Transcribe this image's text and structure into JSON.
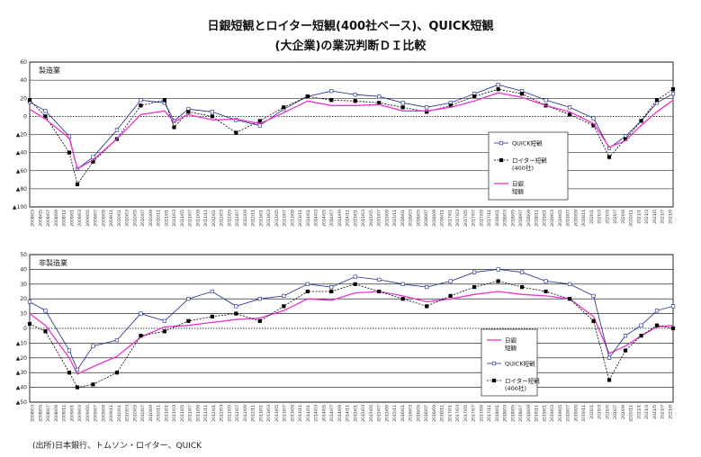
{
  "title_line1": "日銀短観とロイター短観(400社ベース)、QUICK短観",
  "title_line2": "(大企業)の業況判断ＤＩ比較",
  "source": "(出所)日本銀行、トムソン・ロイター、QUICK",
  "colors": {
    "quick": "#1f2a8c",
    "reuters": "#000000",
    "boj": "#ee33cc"
  },
  "x_ticks": [
    "2008/03",
    "2008/05",
    "2008/07",
    "2008/09",
    "2008/11",
    "2009/01",
    "2009/03",
    "2009/05",
    "2009/07",
    "2009/09",
    "2009/11",
    "2010/01",
    "2010/03",
    "2010/05",
    "2010/07",
    "2010/09",
    "2010/11",
    "2011/01",
    "2011/03",
    "2011/05",
    "2011/07",
    "2011/09",
    "2011/11",
    "2012/01",
    "2012/03",
    "2012/05",
    "2012/07",
    "2012/09",
    "2012/11",
    "2013/01",
    "2013/03",
    "2013/05",
    "2013/07",
    "2013/09",
    "2013/11",
    "2014/01",
    "2014/03",
    "2014/05",
    "2014/07",
    "2014/09",
    "2014/11",
    "2015/01",
    "2015/03",
    "2015/05",
    "2015/07",
    "2015/09",
    "2015/11",
    "2016/01",
    "2016/03",
    "2016/05",
    "2016/07",
    "2016/09",
    "2016/11",
    "2017/01",
    "2017/03",
    "2017/05",
    "2017/07",
    "2017/09",
    "2017/11",
    "2018/01",
    "2018/03",
    "2018/05",
    "2018/07",
    "2018/09",
    "2018/11",
    "2019/01",
    "2019/03",
    "2019/05",
    "2019/07",
    "2019/09",
    "2019/11",
    "2020/1",
    "2020/3",
    "2020/5",
    "2020/7",
    "2020/9",
    "2020/11",
    "2021/1",
    "2021/3",
    "2021/5",
    "2021/7",
    "2021/9"
  ],
  "chart_data": [
    {
      "type": "line",
      "panel_label": "製造業",
      "ylim": [
        -100,
        60
      ],
      "y_ticks": [
        60,
        40,
        20,
        0,
        -20,
        -40,
        -60,
        -80,
        -100
      ],
      "y_tick_labels": [
        "60",
        "40",
        "20",
        "0",
        "▲20",
        "▲40",
        "▲60",
        "▲80",
        "▲100"
      ],
      "x_range": [
        2008.17,
        2021.67
      ],
      "series": [
        {
          "name": "QUICK短観",
          "key": "quick",
          "style": "open-square",
          "x": [
            2008.17,
            2008.5,
            2009.0,
            2009.17,
            2009.5,
            2010.0,
            2010.5,
            2011.0,
            2011.2,
            2011.5,
            2012.0,
            2012.5,
            2013.0,
            2013.5,
            2014.0,
            2014.5,
            2015.0,
            2015.5,
            2016.0,
            2016.5,
            2017.0,
            2017.5,
            2018.0,
            2018.5,
            2019.0,
            2019.5,
            2020.0,
            2020.33,
            2020.67,
            2021.0,
            2021.33,
            2021.67
          ],
          "y": [
            16,
            6,
            -22,
            -58,
            -45,
            -15,
            18,
            15,
            -5,
            8,
            5,
            -4,
            -10,
            8,
            22,
            28,
            24,
            22,
            15,
            10,
            15,
            25,
            35,
            28,
            18,
            10,
            -2,
            -35,
            -22,
            -5,
            15,
            25
          ]
        },
        {
          "name": "ロイター短観",
          "sublabel": "(400社)",
          "key": "reuters",
          "style": "filled-square",
          "x": [
            2008.17,
            2008.5,
            2009.0,
            2009.17,
            2009.5,
            2010.0,
            2010.5,
            2011.0,
            2011.2,
            2011.5,
            2012.0,
            2012.5,
            2013.0,
            2013.5,
            2014.0,
            2014.5,
            2015.0,
            2015.5,
            2016.0,
            2016.5,
            2017.0,
            2017.5,
            2018.0,
            2018.5,
            2019.0,
            2019.5,
            2020.0,
            2020.33,
            2020.67,
            2021.0,
            2021.33,
            2021.67
          ],
          "y": [
            18,
            0,
            -40,
            -75,
            -50,
            -25,
            12,
            18,
            -12,
            5,
            0,
            -18,
            -5,
            10,
            22,
            18,
            17,
            15,
            10,
            5,
            12,
            22,
            30,
            25,
            12,
            2,
            -10,
            -45,
            -25,
            -5,
            18,
            30
          ]
        },
        {
          "name": "日銀",
          "sublabel": "短観",
          "key": "boj",
          "style": "line",
          "x": [
            2008.17,
            2008.5,
            2009.0,
            2009.17,
            2009.5,
            2010.0,
            2010.5,
            2011.0,
            2011.2,
            2011.5,
            2012.0,
            2012.5,
            2013.0,
            2013.5,
            2014.0,
            2014.5,
            2015.0,
            2015.5,
            2016.0,
            2016.5,
            2017.0,
            2017.5,
            2018.0,
            2018.5,
            2019.0,
            2019.5,
            2020.0,
            2020.33,
            2020.67,
            2021.0,
            2021.33,
            2021.67
          ],
          "y": [
            8,
            -3,
            -24,
            -58,
            -48,
            -25,
            2,
            6,
            -6,
            2,
            -4,
            -3,
            -8,
            4,
            17,
            12,
            12,
            13,
            6,
            6,
            10,
            17,
            26,
            21,
            12,
            5,
            -8,
            -34,
            -27,
            -10,
            5,
            18
          ]
        }
      ],
      "legend_placement": "lower-right"
    },
    {
      "type": "line",
      "panel_label": "非製造業",
      "ylim": [
        -50,
        50
      ],
      "y_ticks": [
        50,
        40,
        30,
        20,
        10,
        0,
        -10,
        -20,
        -30,
        -40,
        -50
      ],
      "y_tick_labels": [
        "50",
        "40",
        "30",
        "20",
        "10",
        "0",
        "▲10",
        "▲20",
        "▲30",
        "▲40",
        "▲50"
      ],
      "x_range": [
        2008.17,
        2021.67
      ],
      "series": [
        {
          "name": "日銀",
          "sublabel": "短観",
          "key": "boj",
          "style": "line",
          "x": [
            2008.17,
            2008.5,
            2009.0,
            2009.17,
            2009.5,
            2010.0,
            2010.5,
            2011.0,
            2011.5,
            2012.0,
            2012.5,
            2013.0,
            2013.5,
            2014.0,
            2014.5,
            2015.0,
            2015.5,
            2016.0,
            2016.5,
            2017.0,
            2017.5,
            2018.0,
            2018.5,
            2019.0,
            2019.5,
            2020.0,
            2020.33,
            2020.67,
            2021.0,
            2021.33,
            2021.67
          ],
          "y": [
            10,
            2,
            -20,
            -31,
            -26,
            -19,
            -6,
            1,
            2,
            4,
            6,
            7,
            12,
            20,
            19,
            24,
            25,
            22,
            18,
            20,
            23,
            25,
            23,
            22,
            20,
            8,
            -17,
            -12,
            -5,
            1,
            2
          ]
        },
        {
          "name": "QUICK短観",
          "key": "quick",
          "style": "open-square",
          "x": [
            2008.17,
            2008.5,
            2009.0,
            2009.17,
            2009.5,
            2010.0,
            2010.5,
            2011.0,
            2011.5,
            2012.0,
            2012.5,
            2013.0,
            2013.5,
            2014.0,
            2014.5,
            2015.0,
            2015.5,
            2016.0,
            2016.5,
            2017.0,
            2017.5,
            2018.0,
            2018.5,
            2019.0,
            2019.5,
            2020.0,
            2020.33,
            2020.67,
            2021.0,
            2021.33,
            2021.67
          ],
          "y": [
            18,
            12,
            -15,
            -28,
            -12,
            -8,
            10,
            5,
            20,
            25,
            15,
            20,
            22,
            30,
            28,
            35,
            33,
            30,
            28,
            32,
            38,
            40,
            38,
            32,
            30,
            22,
            -20,
            -5,
            2,
            12,
            15
          ]
        },
        {
          "name": "ロイター短観",
          "sublabel": "(400社)",
          "key": "reuters",
          "style": "filled-square",
          "x": [
            2008.17,
            2008.5,
            2009.0,
            2009.17,
            2009.5,
            2010.0,
            2010.5,
            2011.0,
            2011.5,
            2012.0,
            2012.5,
            2013.0,
            2013.5,
            2014.0,
            2014.5,
            2015.0,
            2015.5,
            2016.0,
            2016.5,
            2017.0,
            2017.5,
            2018.0,
            2018.5,
            2019.0,
            2019.5,
            2020.0,
            2020.33,
            2020.67,
            2021.0,
            2021.33,
            2021.67
          ],
          "y": [
            3,
            -2,
            -30,
            -40,
            -38,
            -30,
            -5,
            -2,
            5,
            8,
            10,
            5,
            15,
            25,
            25,
            30,
            25,
            20,
            15,
            22,
            28,
            32,
            28,
            25,
            20,
            5,
            -35,
            -15,
            -5,
            2,
            0
          ]
        }
      ],
      "legend_placement": "lower-right"
    }
  ]
}
